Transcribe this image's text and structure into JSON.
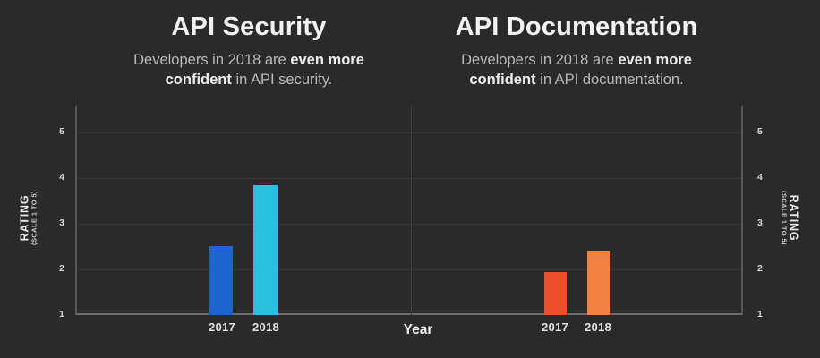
{
  "page": {
    "background": "#2a2a2a"
  },
  "charts": [
    {
      "title": "API Security",
      "subtitle": {
        "pre": "Developers in 2018 are ",
        "bold1": "even more",
        "bold2": "confident",
        "post": " in API security."
      }
    },
    {
      "title": "API Documentation",
      "subtitle": {
        "pre": "Developers in 2018 are ",
        "bold1": "even more",
        "bold2": "confident",
        "post": " in API documentation."
      }
    }
  ],
  "axis": {
    "y_title": "RATING",
    "y_subtitle": "(SCALE 1 TO 5)",
    "x_title": "Year",
    "ticks": [
      "5",
      "4",
      "3",
      "2",
      "1"
    ]
  },
  "chart_data": [
    {
      "type": "bar",
      "title": "API Security",
      "categories": [
        "2017",
        "2018"
      ],
      "values": [
        2.5,
        3.85
      ],
      "colors": [
        "#1e64cc",
        "#2bbfe0"
      ],
      "xlabel": "Year",
      "ylabel": "RATING (SCALE 1 TO 5)",
      "ylim": [
        1,
        5
      ],
      "grid": true,
      "legend": false
    },
    {
      "type": "bar",
      "title": "API Documentation",
      "categories": [
        "2017",
        "2018"
      ],
      "values": [
        1.95,
        2.4
      ],
      "colors": [
        "#ee4f2e",
        "#f0813f"
      ],
      "xlabel": "Year",
      "ylabel": "RATING (SCALE 1 TO 5)",
      "ylim": [
        1,
        5
      ],
      "grid": true,
      "legend": false
    }
  ]
}
